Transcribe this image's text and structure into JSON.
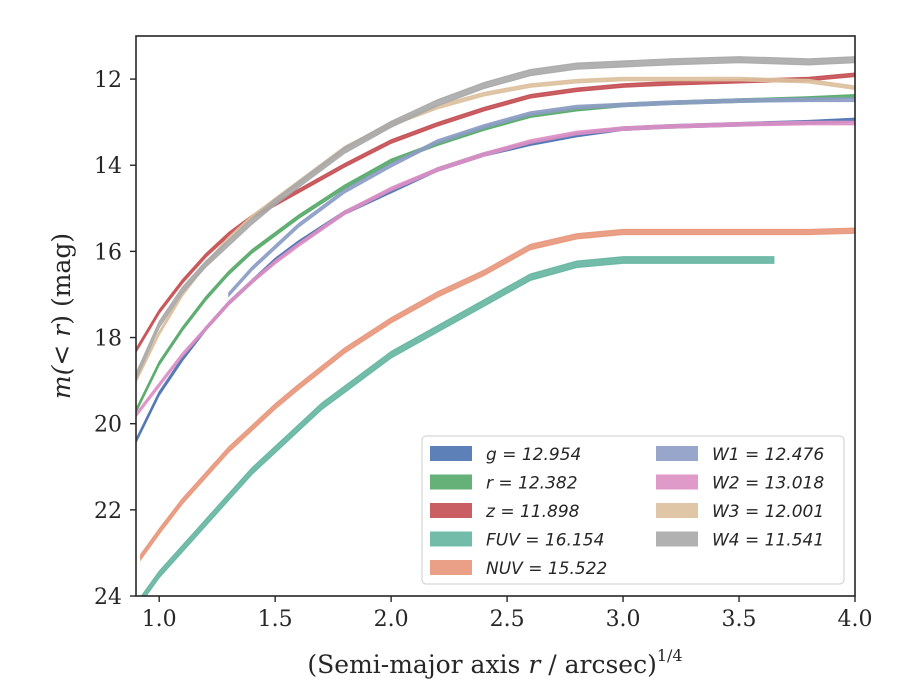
{
  "chart_data": {
    "type": "line",
    "title": "",
    "xlabel": "(Semi-major axis r / arcsec)",
    "xlabel_italic_part": "r",
    "xlabel_superscript": "1/4",
    "ylabel_prefix": "m(",
    "ylabel_math": "< r",
    "ylabel_suffix": ") (mag)",
    "xlim": [
      0.9,
      4.0
    ],
    "ylim": [
      24,
      11
    ],
    "y_inverted": true,
    "xticks": [
      1.0,
      1.5,
      2.0,
      2.5,
      3.0,
      3.5,
      4.0
    ],
    "xtick_labels": [
      "1.0",
      "1.5",
      "2.0",
      "2.5",
      "3.0",
      "3.5",
      "4.0"
    ],
    "yticks": [
      12,
      14,
      16,
      18,
      20,
      22,
      24
    ],
    "ytick_labels": [
      "12",
      "14",
      "16",
      "18",
      "20",
      "22",
      "24"
    ],
    "grid": false,
    "legend_position": "lower-right",
    "legend_columns": 2,
    "series": [
      {
        "key": "g",
        "label": "g = 12.954",
        "color": "#4c72b0",
        "width": 0.08,
        "x": [
          0.9,
          1.0,
          1.1,
          1.2,
          1.3,
          1.4,
          1.5,
          1.6,
          1.8,
          2.0,
          2.2,
          2.4,
          2.6,
          2.8,
          3.0,
          3.2,
          3.5,
          3.8,
          4.0
        ],
        "y": [
          20.4,
          19.3,
          18.5,
          17.8,
          17.2,
          16.7,
          16.2,
          15.8,
          15.1,
          14.6,
          14.1,
          13.75,
          13.5,
          13.3,
          13.15,
          13.1,
          13.05,
          13.0,
          12.95
        ]
      },
      {
        "key": "r",
        "label": "r = 12.382",
        "color": "#55a868",
        "width": 0.08,
        "x": [
          0.9,
          1.0,
          1.1,
          1.2,
          1.3,
          1.4,
          1.5,
          1.6,
          1.8,
          2.0,
          2.2,
          2.4,
          2.6,
          2.8,
          3.0,
          3.2,
          3.5,
          3.8,
          4.0
        ],
        "y": [
          19.7,
          18.6,
          17.8,
          17.1,
          16.5,
          16.0,
          15.6,
          15.2,
          14.5,
          13.9,
          13.5,
          13.15,
          12.85,
          12.7,
          12.6,
          12.55,
          12.5,
          12.45,
          12.4
        ]
      },
      {
        "key": "z",
        "label": "z = 11.898",
        "color": "#c44e52",
        "width": 0.08,
        "x": [
          0.9,
          1.0,
          1.1,
          1.2,
          1.3,
          1.4,
          1.5,
          1.6,
          1.8,
          2.0,
          2.2,
          2.4,
          2.6,
          2.8,
          3.0,
          3.2,
          3.5,
          3.8,
          4.0
        ],
        "y": [
          18.3,
          17.4,
          16.7,
          16.1,
          15.6,
          15.2,
          14.9,
          14.6,
          14.0,
          13.45,
          13.05,
          12.7,
          12.4,
          12.25,
          12.15,
          12.1,
          12.05,
          12.0,
          11.9
        ]
      },
      {
        "key": "FUV",
        "label": "FUV = 16.154",
        "color": "#64b5a0",
        "width": 0.15,
        "x": [
          0.92,
          1.0,
          1.1,
          1.2,
          1.3,
          1.4,
          1.5,
          1.6,
          1.7,
          1.8,
          2.0,
          2.2,
          2.4,
          2.6,
          2.8,
          3.0,
          3.2,
          3.5,
          3.65
        ],
        "y": [
          24.1,
          23.5,
          22.9,
          22.3,
          21.7,
          21.1,
          20.6,
          20.1,
          19.6,
          19.2,
          18.4,
          17.8,
          17.2,
          16.6,
          16.3,
          16.2,
          16.2,
          16.2,
          16.2
        ]
      },
      {
        "key": "NUV",
        "label": "NUV = 15.522",
        "color": "#e8967a",
        "width": 0.12,
        "x": [
          0.92,
          1.0,
          1.1,
          1.2,
          1.3,
          1.4,
          1.5,
          1.6,
          1.8,
          2.0,
          2.2,
          2.4,
          2.6,
          2.8,
          3.0,
          3.2,
          3.5,
          3.8,
          4.0
        ],
        "y": [
          23.1,
          22.5,
          21.8,
          21.2,
          20.6,
          20.1,
          19.6,
          19.15,
          18.3,
          17.6,
          17.0,
          16.5,
          15.9,
          15.65,
          15.55,
          15.55,
          15.55,
          15.55,
          15.52
        ]
      },
      {
        "key": "W1",
        "label": "W1 = 12.476",
        "color": "#8c9cc4",
        "width": 0.08,
        "x": [
          1.3,
          1.4,
          1.5,
          1.6,
          1.8,
          2.0,
          2.2,
          2.4,
          2.6,
          2.8,
          3.0,
          3.2,
          3.5,
          3.8,
          4.0
        ],
        "y": [
          17.0,
          16.4,
          15.9,
          15.4,
          14.6,
          14.0,
          13.45,
          13.1,
          12.8,
          12.65,
          12.6,
          12.55,
          12.5,
          12.48,
          12.48
        ]
      },
      {
        "key": "W2",
        "label": "W2 = 13.018",
        "color": "#dd8fc4",
        "width": 0.08,
        "x": [
          0.9,
          1.0,
          1.1,
          1.2,
          1.3,
          1.4,
          1.5,
          1.6,
          1.8,
          2.0,
          2.2,
          2.4,
          2.6,
          2.8,
          3.0,
          3.2,
          3.5,
          3.8,
          4.0
        ],
        "y": [
          19.8,
          19.1,
          18.4,
          17.8,
          17.2,
          16.7,
          16.25,
          15.85,
          15.1,
          14.55,
          14.1,
          13.75,
          13.45,
          13.25,
          13.15,
          13.1,
          13.05,
          13.02,
          13.02
        ]
      },
      {
        "key": "W3",
        "label": "W3 = 12.001",
        "color": "#dcc09c",
        "width": 0.08,
        "x": [
          0.9,
          1.0,
          1.1,
          1.2,
          1.3,
          1.4,
          1.5,
          1.6,
          1.8,
          2.0,
          2.2,
          2.4,
          2.6,
          2.8,
          3.0,
          3.2,
          3.5,
          3.8,
          4.0
        ],
        "y": [
          19.0,
          17.9,
          17.0,
          16.3,
          15.7,
          15.2,
          14.8,
          14.4,
          13.6,
          13.05,
          12.65,
          12.35,
          12.15,
          12.05,
          12.0,
          12.0,
          12.0,
          12.05,
          12.2
        ]
      },
      {
        "key": "W4",
        "label": "W4 = 11.541",
        "color": "#a8a8a8",
        "width": 0.14,
        "x": [
          0.9,
          1.0,
          1.1,
          1.2,
          1.3,
          1.4,
          1.5,
          1.6,
          1.8,
          2.0,
          2.2,
          2.4,
          2.6,
          2.8,
          3.0,
          3.2,
          3.5,
          3.8,
          4.0
        ],
        "y": [
          18.9,
          17.7,
          16.9,
          16.3,
          15.8,
          15.3,
          14.85,
          14.45,
          13.65,
          13.05,
          12.55,
          12.15,
          11.85,
          11.7,
          11.65,
          11.6,
          11.55,
          11.6,
          11.55
        ]
      }
    ]
  }
}
